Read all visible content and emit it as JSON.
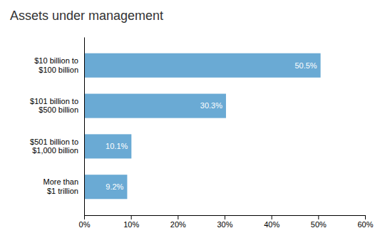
{
  "chart_data": {
    "type": "bar",
    "orientation": "horizontal",
    "title": "Assets under management",
    "categories": [
      "More than\n$1 trillion",
      "$501 billion to\n$1,000 billion",
      "$101 billion to\n$500 billion",
      "$10 billion to\n$100 billion"
    ],
    "values": [
      9.2,
      10.1,
      30.3,
      50.5
    ],
    "value_labels": [
      "9.2%",
      "10.1%",
      "30.3%",
      "50.5%"
    ],
    "data_labels": true,
    "color": "#6aaad4",
    "xlim": [
      0,
      60
    ],
    "xticks": [
      {
        "value": 0,
        "label": "0%"
      },
      {
        "value": 10,
        "label": "10%"
      },
      {
        "value": 20,
        "label": "20%"
      },
      {
        "value": 30,
        "label": "30%"
      },
      {
        "value": 40,
        "label": "40%"
      },
      {
        "value": 50,
        "label": "50%"
      },
      {
        "value": 60,
        "label": "60%"
      }
    ],
    "grid": false
  }
}
